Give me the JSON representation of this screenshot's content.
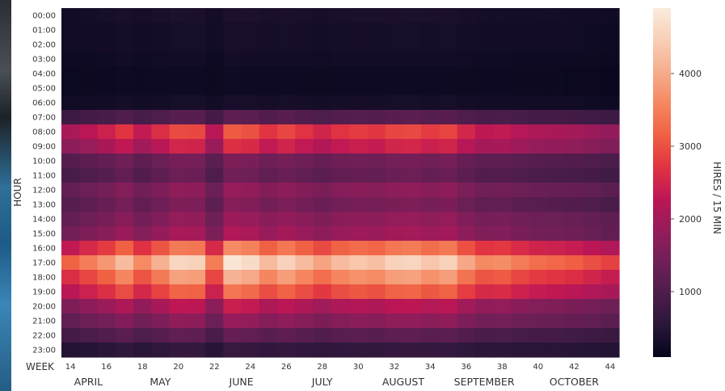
{
  "chart_data": {
    "type": "heatmap",
    "title": "",
    "ylabel": "HOUR",
    "xlabel": "WEEK",
    "colorbar_label": "HIRES  /  15 MIN",
    "colorbar_ticks": [
      1000,
      2000,
      3000,
      4000
    ],
    "colorbar_range": [
      100,
      4900
    ],
    "hours": [
      "00:00",
      "01:00",
      "02:00",
      "03:00",
      "04:00",
      "05:00",
      "06:00",
      "07:00",
      "08:00",
      "09:00",
      "10:00",
      "11:00",
      "12:00",
      "13:00",
      "14:00",
      "15:00",
      "16:00",
      "17:00",
      "18:00",
      "19:00",
      "20:00",
      "21:00",
      "22:00",
      "23:00"
    ],
    "weeks": [
      14,
      15,
      16,
      17,
      18,
      19,
      20,
      21,
      22,
      23,
      24,
      25,
      26,
      27,
      28,
      29,
      30,
      31,
      32,
      33,
      34,
      35,
      36,
      37,
      38,
      39,
      40,
      41,
      42,
      43,
      44
    ],
    "week_tick_labels": [
      14,
      16,
      18,
      20,
      22,
      24,
      26,
      28,
      30,
      32,
      34,
      36,
      38,
      40,
      42,
      44
    ],
    "months": [
      {
        "label": "APRIL",
        "week": 15
      },
      {
        "label": "MAY",
        "week": 19
      },
      {
        "label": "JUNE",
        "week": 23.5
      },
      {
        "label": "JULY",
        "week": 28
      },
      {
        "label": "AUGUST",
        "week": 32.5
      },
      {
        "label": "SEPTEMBER",
        "week": 37
      },
      {
        "label": "OCTOBER",
        "week": 42
      }
    ],
    "week_intensity": [
      0.45,
      0.55,
      0.65,
      0.8,
      0.6,
      0.75,
      0.92,
      0.9,
      0.55,
      1.0,
      0.95,
      0.8,
      0.9,
      0.8,
      0.7,
      0.8,
      0.85,
      0.82,
      0.9,
      0.92,
      0.85,
      0.9,
      0.72,
      0.6,
      0.62,
      0.55,
      0.5,
      0.48,
      0.45,
      0.4,
      0.35
    ],
    "hour_profile": [
      0.06,
      0.05,
      0.05,
      0.04,
      0.03,
      0.03,
      0.05,
      0.22,
      0.62,
      0.55,
      0.28,
      0.3,
      0.34,
      0.34,
      0.37,
      0.42,
      0.75,
      0.96,
      0.86,
      0.66,
      0.5,
      0.36,
      0.24,
      0.14
    ],
    "colors": {
      "cmap": [
        "#03051a",
        "#2a1639",
        "#4c1d4b",
        "#701f57",
        "#961c5b",
        "#bd1655",
        "#e13342",
        "#f06043",
        "#f58860",
        "#f6ad8e",
        "#f8cfb6",
        "#faebdd"
      ],
      "ytick": "#333333"
    }
  }
}
